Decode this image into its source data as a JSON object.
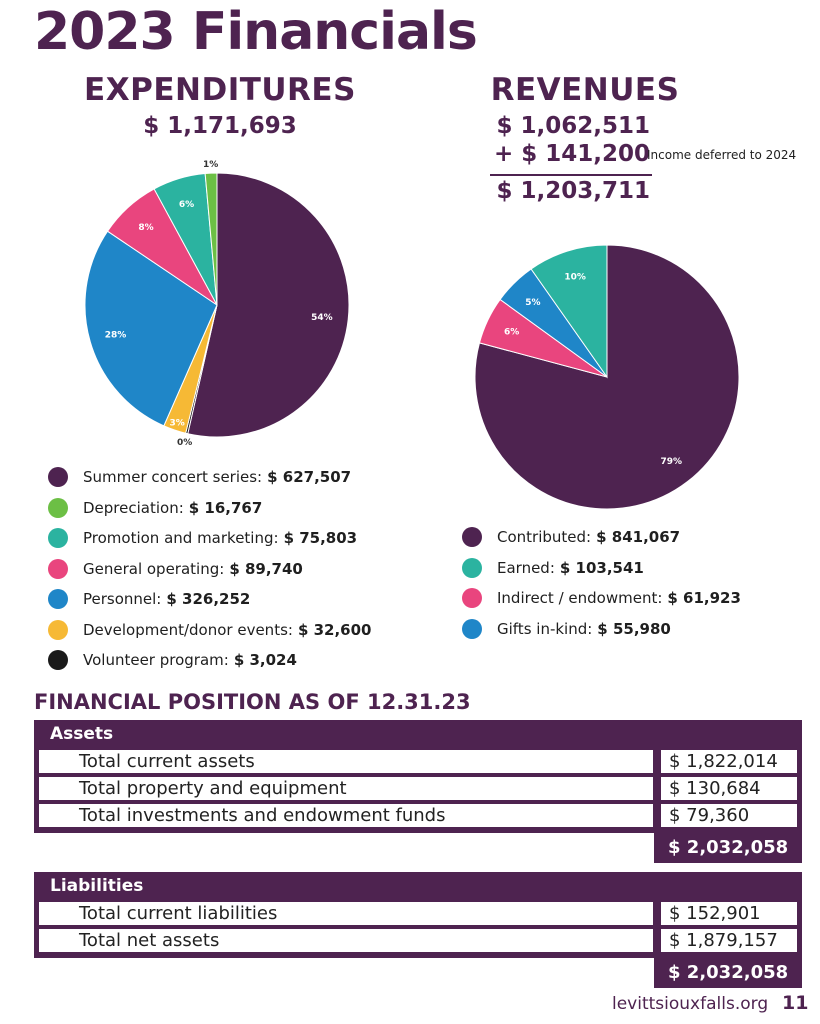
{
  "page": {
    "title": "2023 Financials",
    "footer_url": "levittsiouxfalls.org",
    "page_number": "11"
  },
  "expenditures": {
    "heading": "EXPENDITURES",
    "total": "$ 1,171,693",
    "legend": [
      {
        "label": "Summer concert series:",
        "value": "$ 627,507",
        "color": "#4e2350"
      },
      {
        "label": "Depreciation:",
        "value": "$ 16,767",
        "color": "#6cbf45"
      },
      {
        "label": "Promotion and marketing:",
        "value": "$ 75,803",
        "color": "#2bb3a0"
      },
      {
        "label": "General operating:",
        "value": "$ 89,740",
        "color": "#e9457e"
      },
      {
        "label": "Personnel:",
        "value": "$ 326,252",
        "color": "#1f86c8"
      },
      {
        "label": "Development/donor events:",
        "value": "$ 32,600",
        "color": "#f6b935"
      },
      {
        "label": "Volunteer program:",
        "value": "$ 3,024",
        "color": "#1a1a1a"
      }
    ]
  },
  "revenues": {
    "heading": "REVENUES",
    "line1": "$ 1,062,511",
    "line2": "+ $ 141,200",
    "deferred_note": "Income deferred to 2024",
    "total": "$ 1,203,711",
    "legend": [
      {
        "label": "Contributed:",
        "value": "$ 841,067",
        "color": "#4e2350"
      },
      {
        "label": "Earned:",
        "value": "$ 103,541",
        "color": "#2bb3a0"
      },
      {
        "label": "Indirect / endowment:",
        "value": "$ 61,923",
        "color": "#e9457e"
      },
      {
        "label": "Gifts in-kind:",
        "value": "$ 55,980",
        "color": "#1f86c8"
      }
    ]
  },
  "chart_data": [
    {
      "type": "pie",
      "title": "EXPENDITURES",
      "categories": [
        "Summer concert series",
        "Volunteer program",
        "Development/donor events",
        "Personnel",
        "General operating",
        "Promotion and marketing",
        "Depreciation"
      ],
      "values": [
        627507,
        3024,
        32600,
        326252,
        89740,
        75803,
        16767
      ],
      "percent_labels": [
        "54%",
        "0%",
        "3%",
        "28%",
        "8%",
        "6%",
        "1%"
      ],
      "colors": [
        "#4e2350",
        "#1a1a1a",
        "#f6b935",
        "#1f86c8",
        "#e9457e",
        "#2bb3a0",
        "#6cbf45"
      ]
    },
    {
      "type": "pie",
      "title": "REVENUES",
      "categories": [
        "Contributed",
        "Indirect / endowment",
        "Gifts in-kind",
        "Earned"
      ],
      "values": [
        841067,
        61923,
        55980,
        103541
      ],
      "percent_labels": [
        "79%",
        "6%",
        "5%",
        "10%"
      ],
      "colors": [
        "#4e2350",
        "#e9457e",
        "#1f86c8",
        "#2bb3a0"
      ]
    }
  ],
  "financial_position": {
    "title": "FINANCIAL POSITION AS OF 12.31.23",
    "assets": {
      "heading": "Assets",
      "rows": [
        {
          "label": "Total current assets",
          "value": "$  1,822,014"
        },
        {
          "label": "Total property and equipment",
          "value": "$  130,684"
        },
        {
          "label": "Total investments and endowment funds",
          "value": "$  79,360"
        }
      ],
      "total": "$  2,032,058"
    },
    "liabilities": {
      "heading": "Liabilities",
      "rows": [
        {
          "label": "Total current liabilities",
          "value": "$  152,901"
        },
        {
          "label": "Total net assets",
          "value": "$  1,879,157"
        }
      ],
      "total": "$  2,032,058"
    }
  }
}
